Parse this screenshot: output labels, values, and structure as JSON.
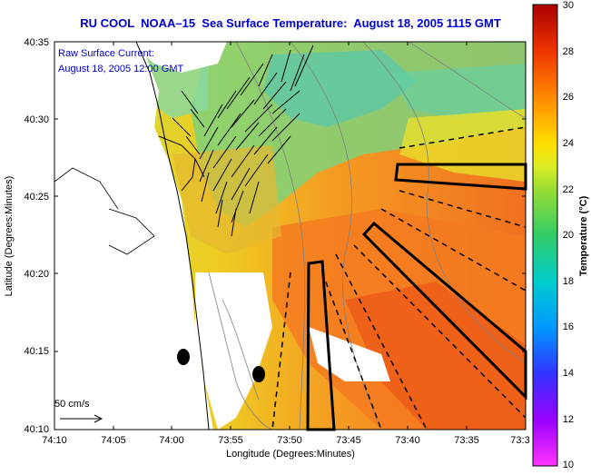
{
  "title": "RU COOL  NOAA–15  Sea Surface Temperature:  August 18, 2005 1115 GMT",
  "legend": {
    "line1": "Raw Surface Current:",
    "line2": "August 18, 2005 12:00 GMT",
    "scale_label": "50 cm/s"
  },
  "axes": {
    "xlabel": "Longitude (Degrees:Minutes)",
    "ylabel": "Latitude (Degrees:Minutes)",
    "x_ticks": [
      "74:10",
      "74:05",
      "74:00",
      "73:55",
      "73:50",
      "73:45",
      "73:40",
      "73:35",
      "73:3"
    ],
    "y_ticks": [
      "40:35",
      "40:30",
      "40:25",
      "40:20",
      "40:15",
      "40:10"
    ]
  },
  "colorbar": {
    "label": "Temperature (°C)",
    "ticks": [
      "30",
      "28",
      "26",
      "24",
      "22",
      "20",
      "18",
      "16",
      "14",
      "12",
      "10"
    ]
  },
  "colors": {
    "title": "#0000cc",
    "legend_text": "#0000cc",
    "land": "#ffffff",
    "frame": "#000000"
  }
}
